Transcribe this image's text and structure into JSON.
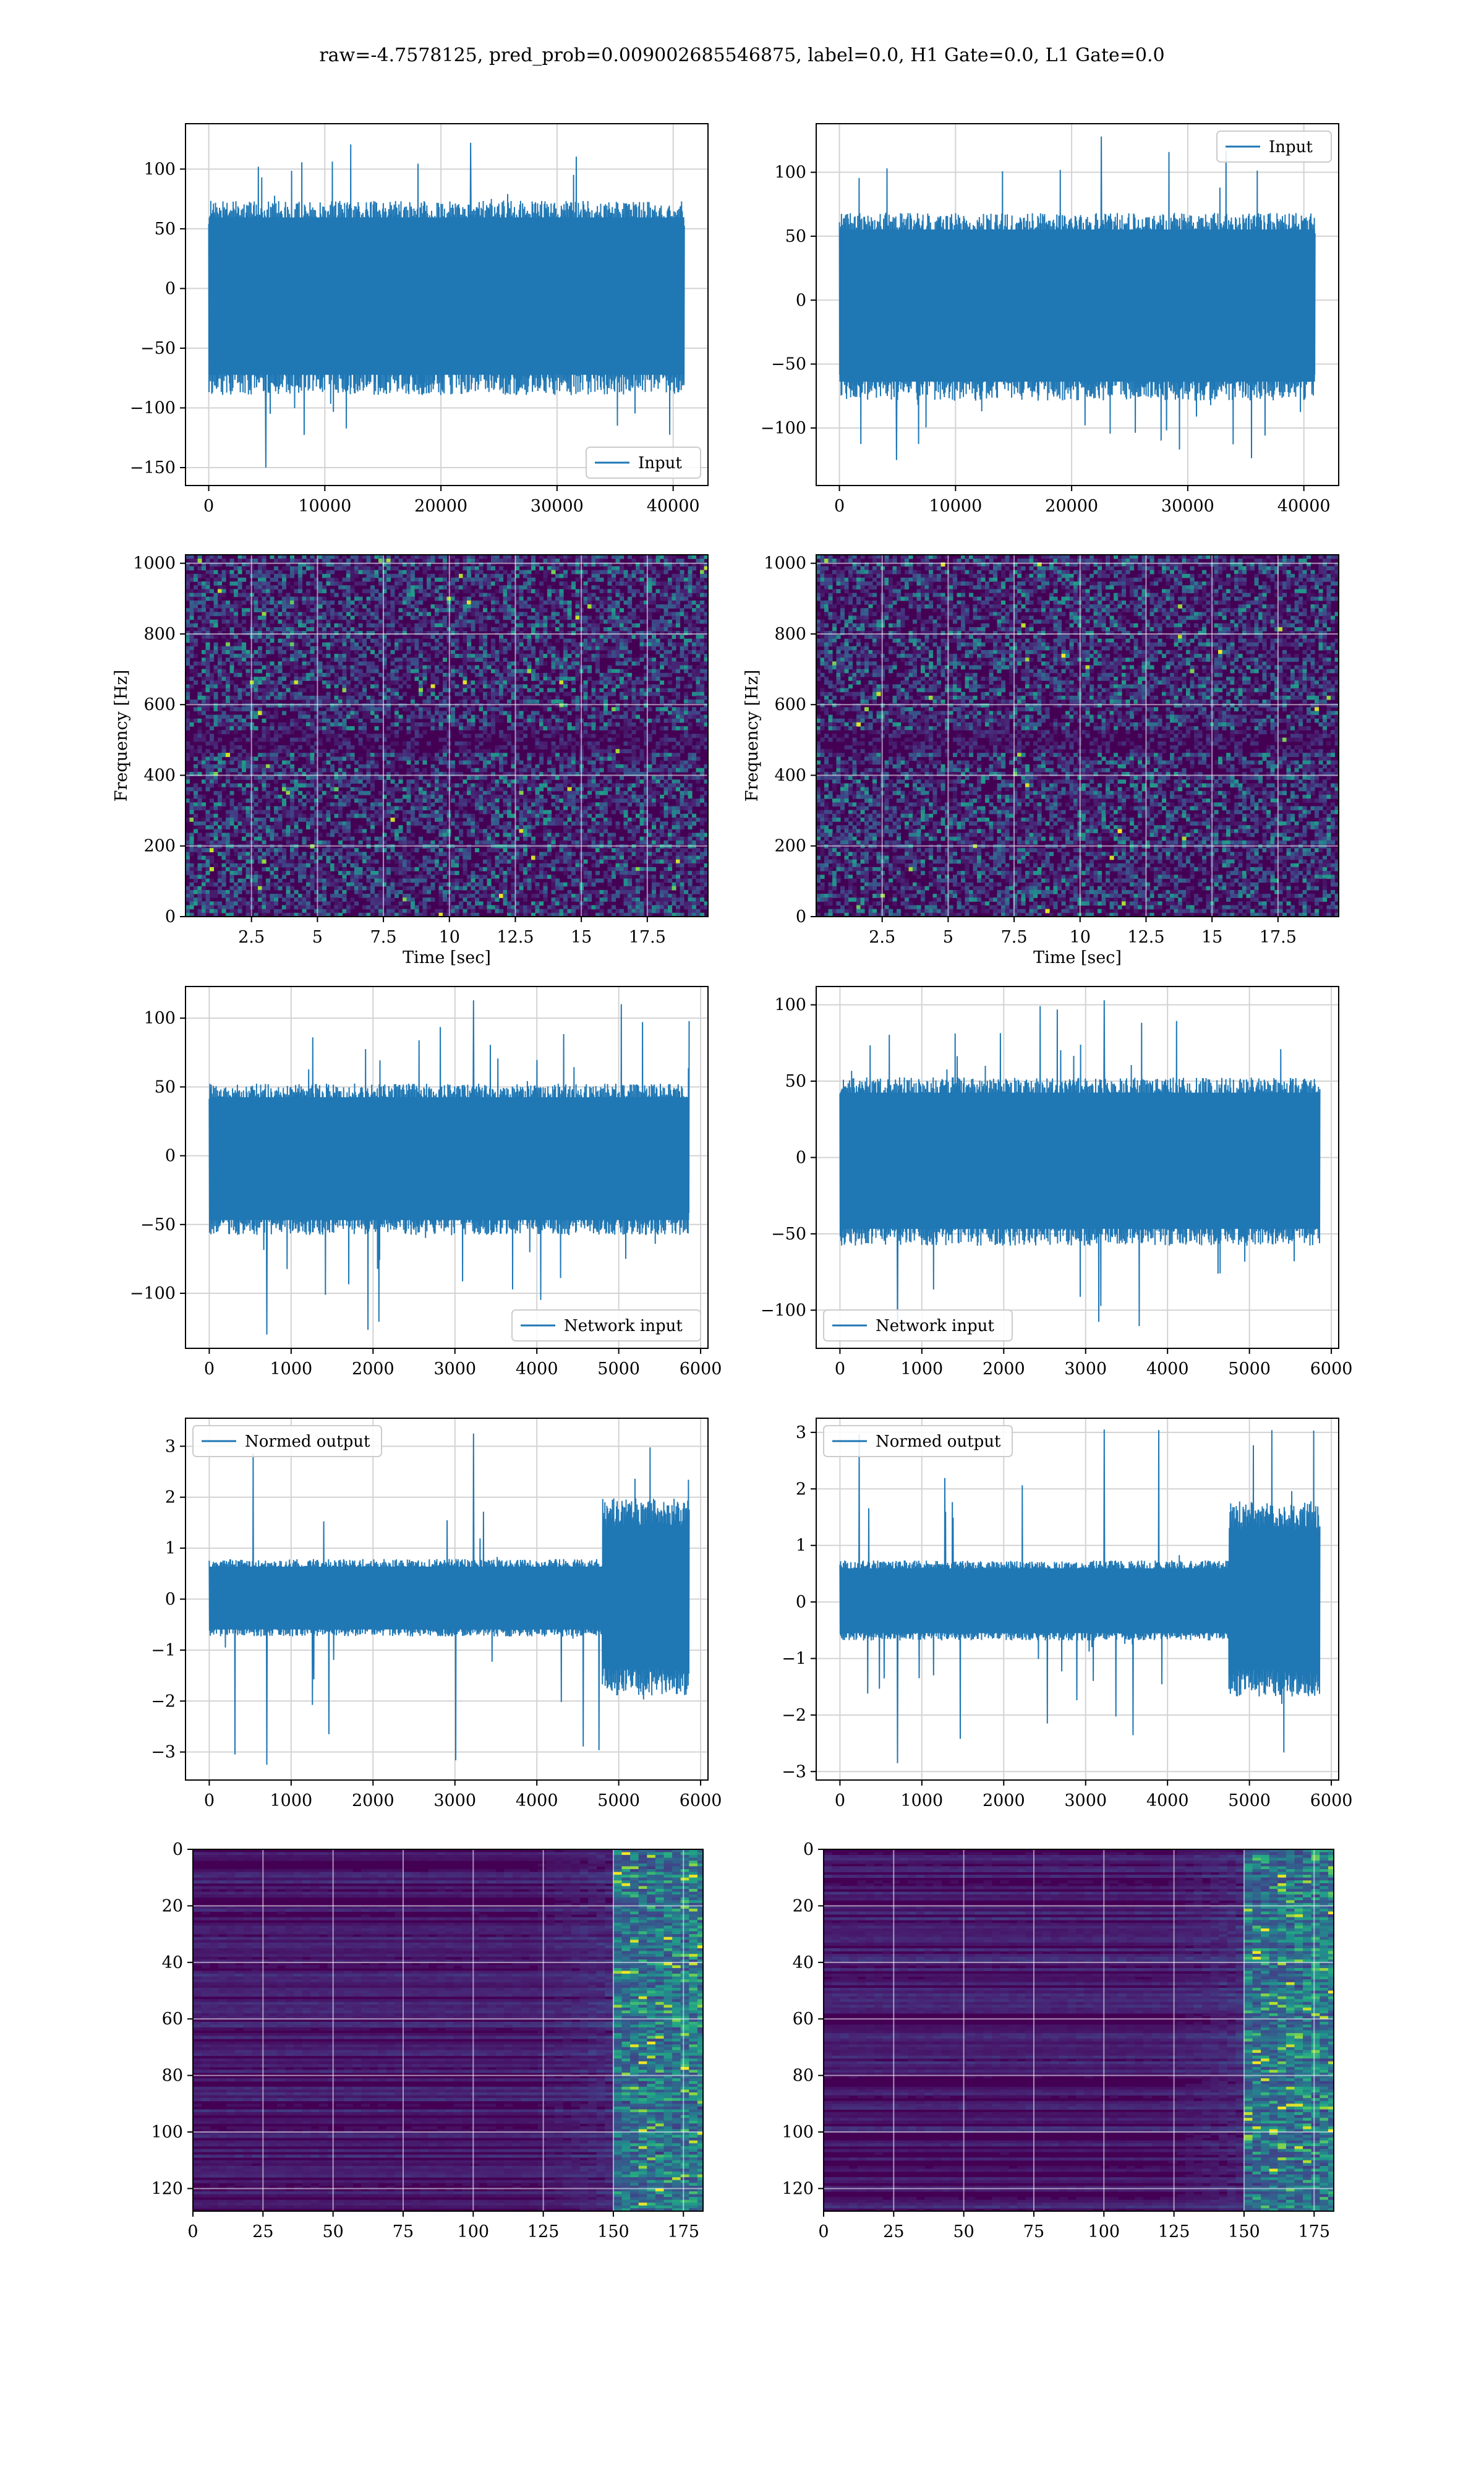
{
  "figure": {
    "title": "raw=-4.7578125, pred_prob=0.009002685546875, label=0.0, H1 Gate=0.0, L1 Gate=0.0"
  },
  "colors": {
    "line": "#1f77b4",
    "grid": "#d3d3d3",
    "viridis_dark": "#440154",
    "viridis_mid": "#21918c",
    "viridis_bright": "#fde725"
  },
  "chart_data": [
    {
      "id": "p1",
      "type": "line",
      "legend": "Input",
      "legend_loc": "lower-right",
      "xlim": [
        -2000,
        43000
      ],
      "ylim": [
        -165,
        138
      ],
      "xticks": [
        0,
        10000,
        20000,
        30000,
        40000
      ],
      "yticks": [
        -150,
        -100,
        -50,
        0,
        50,
        100
      ],
      "x_range": [
        0,
        40960
      ],
      "envelope": [
        -85,
        70
      ],
      "spike_min": -150,
      "spike_max": 122,
      "grid": true
    },
    {
      "id": "p2",
      "type": "line",
      "legend": "Input",
      "legend_loc": "upper-right",
      "xlim": [
        -2000,
        43000
      ],
      "ylim": [
        -145,
        138
      ],
      "xticks": [
        0,
        10000,
        20000,
        30000,
        40000
      ],
      "yticks": [
        -100,
        -50,
        0,
        50,
        100
      ],
      "x_range": [
        0,
        40960
      ],
      "envelope": [
        -75,
        65
      ],
      "spike_min": -125,
      "spike_max": 128,
      "grid": true
    },
    {
      "id": "p3",
      "type": "heatmap",
      "colormap": "viridis",
      "xlim": [
        0,
        19.8
      ],
      "ylim": [
        0,
        1024
      ],
      "xticks": [
        2.5,
        5.0,
        7.5,
        10.0,
        12.5,
        15.0,
        17.5
      ],
      "yticks": [
        0,
        200,
        400,
        600,
        800,
        1000
      ],
      "xlabel": "Time [sec]",
      "ylabel": "Frequency [Hz]",
      "grid": true
    },
    {
      "id": "p4",
      "type": "heatmap",
      "colormap": "viridis",
      "xlim": [
        0,
        19.8
      ],
      "ylim": [
        0,
        1024
      ],
      "xticks": [
        2.5,
        5.0,
        7.5,
        10.0,
        12.5,
        15.0,
        17.5
      ],
      "yticks": [
        0,
        200,
        400,
        600,
        800,
        1000
      ],
      "xlabel": "Time [sec]",
      "ylabel": "Frequency [Hz]",
      "grid": true
    },
    {
      "id": "p5",
      "type": "line",
      "legend": "Network input",
      "legend_loc": "lower-right",
      "xlim": [
        -290,
        6090
      ],
      "ylim": [
        -140,
        123
      ],
      "xticks": [
        0,
        1000,
        2000,
        3000,
        4000,
        5000,
        6000
      ],
      "yticks": [
        -100,
        -50,
        0,
        50,
        100
      ],
      "x_range": [
        0,
        5860
      ],
      "envelope": [
        -55,
        50
      ],
      "spike_min": -130,
      "spike_max": 113,
      "grid": true
    },
    {
      "id": "p6",
      "type": "line",
      "legend": "Network input",
      "legend_loc": "lower-left",
      "xlim": [
        -290,
        6090
      ],
      "ylim": [
        -125,
        112
      ],
      "xticks": [
        0,
        1000,
        2000,
        3000,
        4000,
        5000,
        6000
      ],
      "yticks": [
        -100,
        -50,
        0,
        50,
        100
      ],
      "x_range": [
        0,
        5860
      ],
      "envelope": [
        -55,
        50
      ],
      "spike_min": -115,
      "spike_max": 103,
      "grid": true
    },
    {
      "id": "p7",
      "type": "line",
      "legend": "Normed output",
      "legend_loc": "upper-left",
      "xlim": [
        -290,
        6090
      ],
      "ylim": [
        -3.55,
        3.55
      ],
      "xticks": [
        0,
        1000,
        2000,
        3000,
        4000,
        5000,
        6000
      ],
      "yticks": [
        -3,
        -2,
        -1,
        0,
        1,
        2,
        3
      ],
      "x_range": [
        0,
        5860
      ],
      "envelope": [
        -0.7,
        0.75
      ],
      "late_envelope": [
        -1.8,
        1.9
      ],
      "late_start": 4800,
      "spike_min": -3.25,
      "spike_max": 3.25,
      "grid": true
    },
    {
      "id": "p8",
      "type": "line",
      "legend": "Normed output",
      "legend_loc": "upper-left",
      "xlim": [
        -290,
        6090
      ],
      "ylim": [
        -3.15,
        3.25
      ],
      "xticks": [
        0,
        1000,
        2000,
        3000,
        4000,
        5000,
        6000
      ],
      "yticks": [
        -3,
        -2,
        -1,
        0,
        1,
        2,
        3
      ],
      "x_range": [
        0,
        5860
      ],
      "envelope": [
        -0.65,
        0.7
      ],
      "late_envelope": [
        -1.6,
        1.7
      ],
      "late_start": 4750,
      "spike_min": -2.85,
      "spike_max": 3.05,
      "grid": true
    },
    {
      "id": "p9",
      "type": "heatmap",
      "colormap": "viridis",
      "xlim": [
        0,
        182
      ],
      "ylim": [
        128,
        0
      ],
      "xticks": [
        0,
        25,
        50,
        75,
        100,
        125,
        150,
        175
      ],
      "yticks": [
        0,
        20,
        40,
        60,
        80,
        100,
        120
      ],
      "grid": true
    },
    {
      "id": "p10",
      "type": "heatmap",
      "colormap": "viridis",
      "xlim": [
        0,
        182
      ],
      "ylim": [
        128,
        0
      ],
      "xticks": [
        0,
        25,
        50,
        75,
        100,
        125,
        150,
        175
      ],
      "yticks": [
        0,
        20,
        40,
        60,
        80,
        100,
        120
      ],
      "grid": true
    }
  ]
}
